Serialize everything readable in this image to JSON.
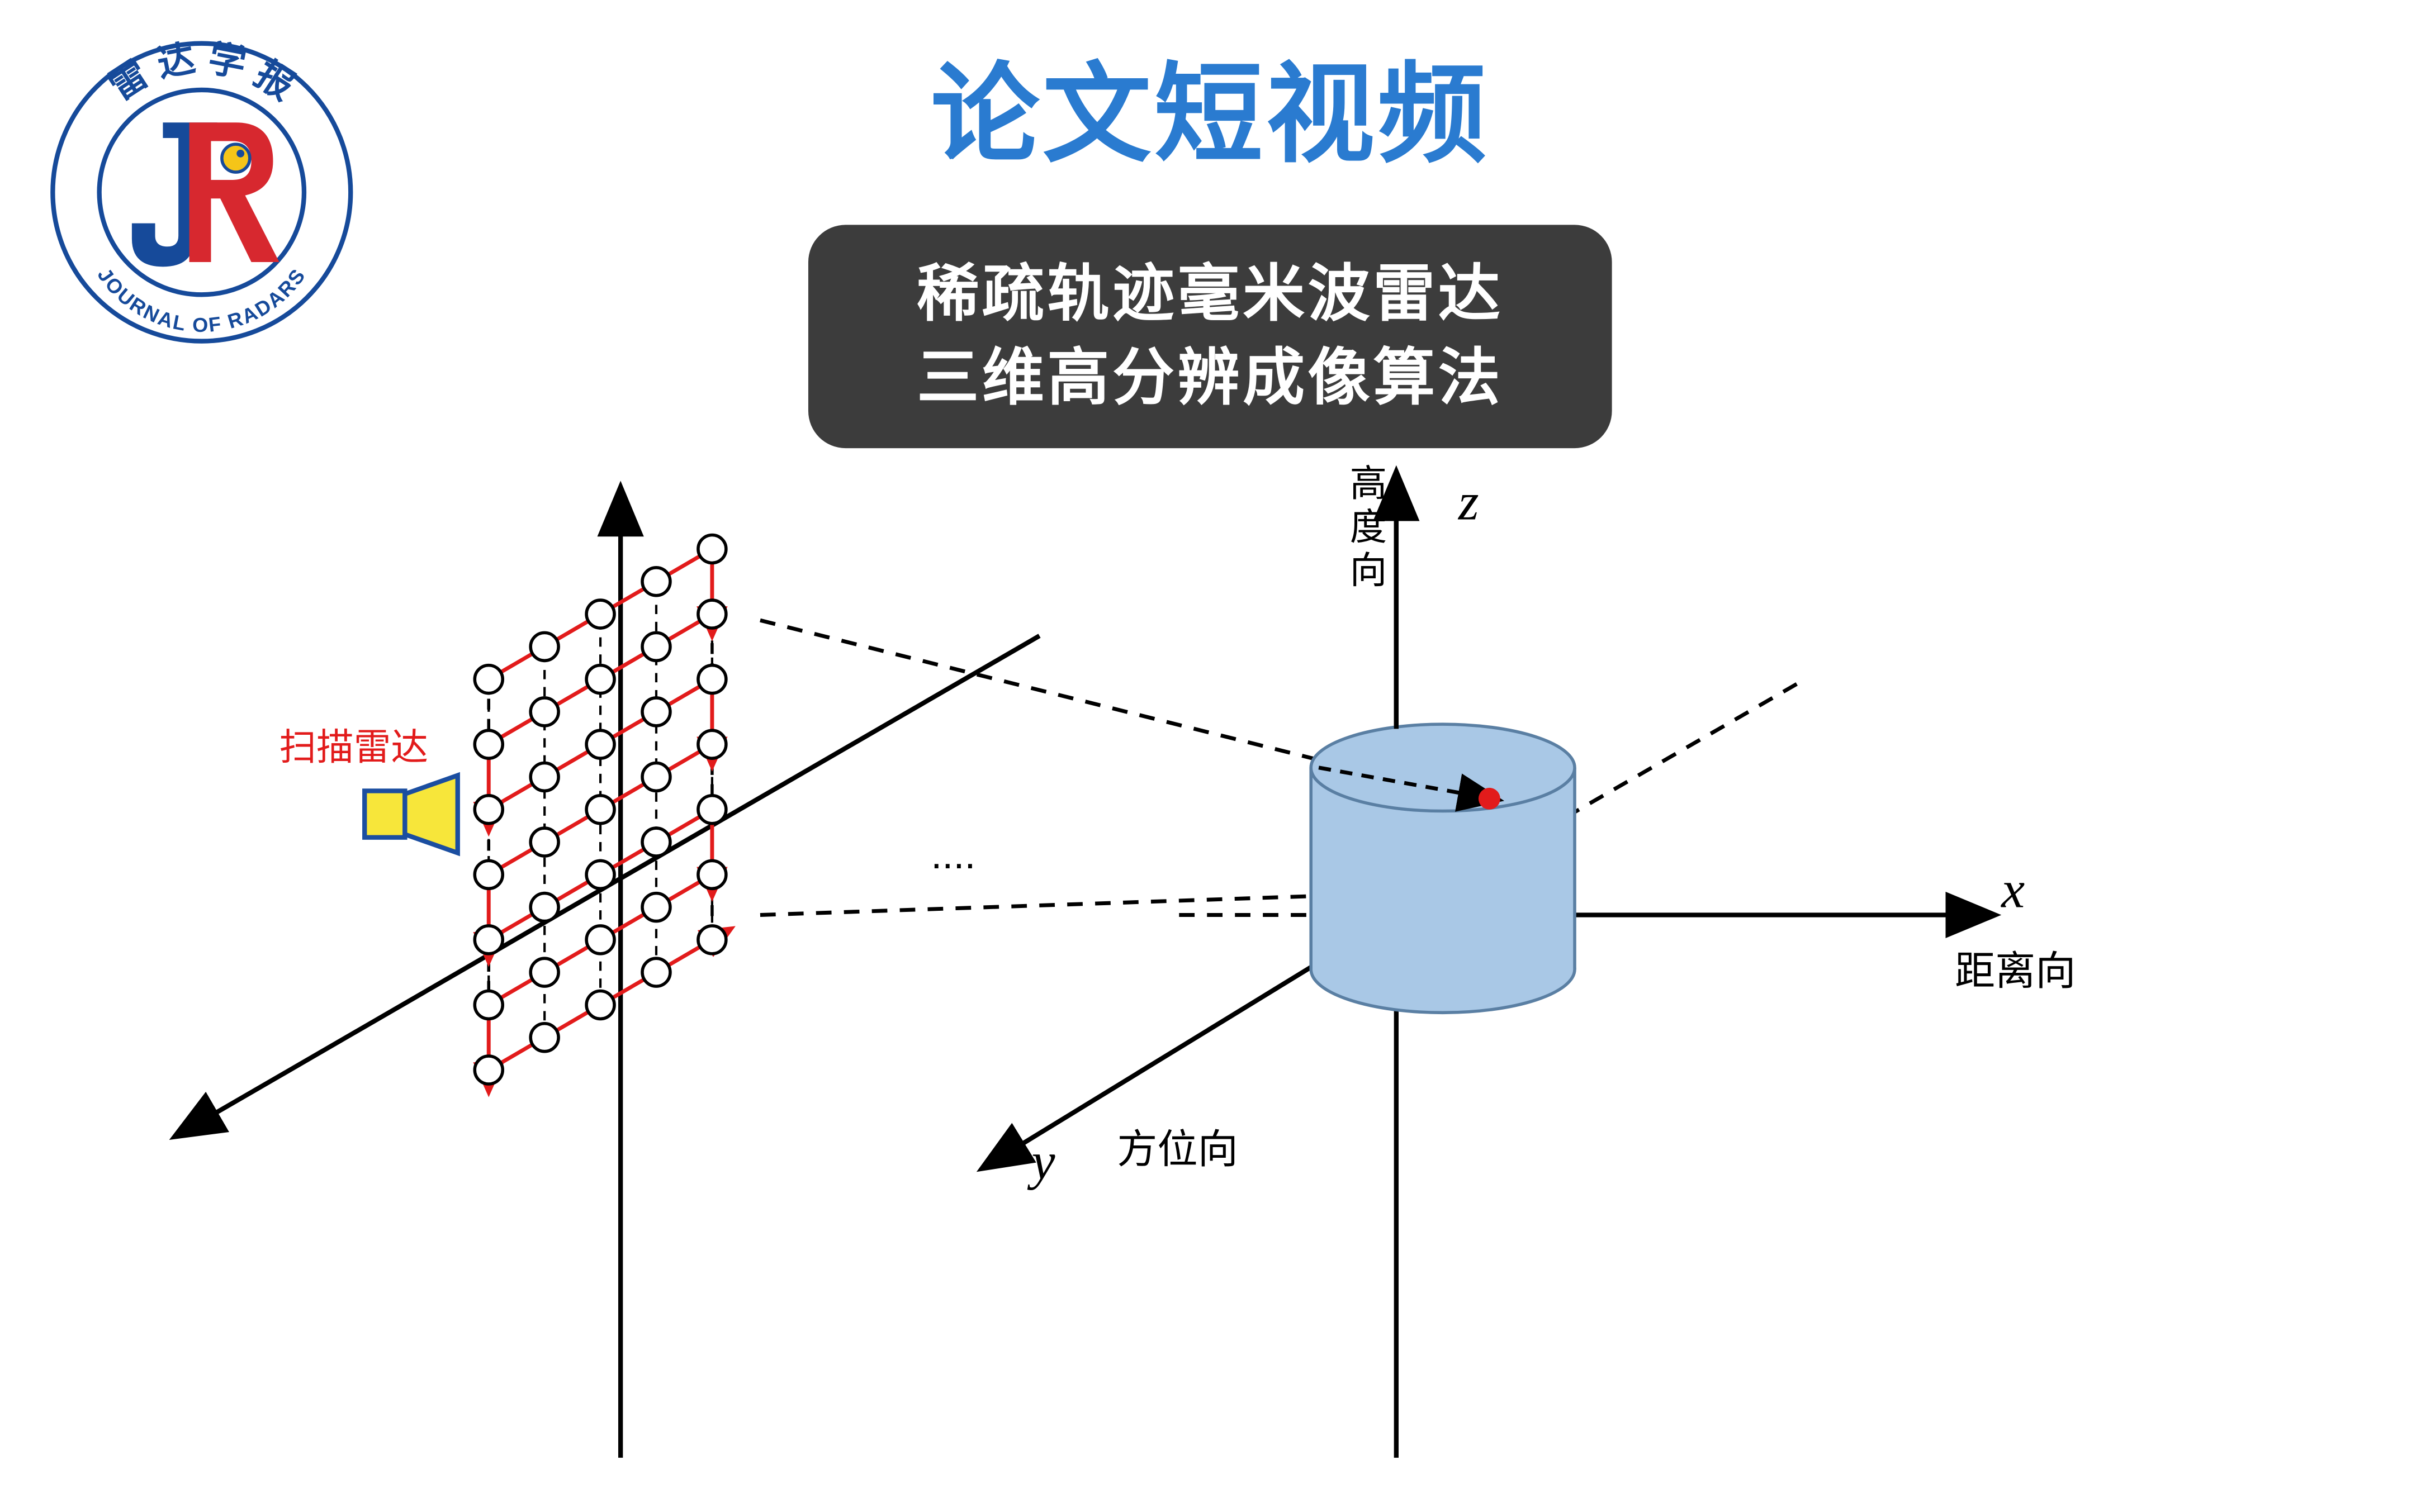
{
  "header": {
    "main_title": "论文短视频",
    "title_color": "#2a7bd0",
    "subtitle_line1": "稀疏轨迹毫米波雷达",
    "subtitle_line2": "三维高分辨成像算法",
    "subtitle_bg": "#3c3c3c",
    "subtitle_text_color": "#ffffff",
    "subtitle_fontsize": 40
  },
  "logo": {
    "outer_text_top": "雷 达 学 报",
    "outer_text_bottom": "JOURNAL OF RADARS",
    "ring_fill": "#ffffff",
    "ring_stroke": "#164a9a",
    "letter_blue": "#164a9a",
    "letter_red": "#d7282f",
    "accent_yellow": "#f5c518"
  },
  "diagram": {
    "type": "schematic",
    "background": "#ffffff",
    "axis_color": "#000000",
    "dash_color": "#000000",
    "scan_path_color": "#e21b1b",
    "radar_fill": "#f7e63a",
    "radar_stroke": "#1b4ea0",
    "cylinder_fill": "#a9c8e6",
    "cylinder_stroke": "#5a7fa3",
    "target_point_color": "#e21b1b",
    "labels": {
      "radar": "扫描雷达",
      "dots": "....",
      "x_axis_var": "x",
      "x_axis_cn": "距离向",
      "y_axis_var": "y",
      "y_axis_cn": "方位向",
      "z_axis_var": "z",
      "z_axis_cn_1": "高",
      "z_axis_cn_2": "度",
      "z_axis_cn_3": "向"
    },
    "label_fontsize_cn": 26,
    "label_fontsize_var": 34,
    "grid": {
      "rows": 7,
      "cols": 5,
      "circle_r": 9,
      "circle_stroke": "#000000",
      "circle_fill": "none",
      "dash_stroke": "#000000"
    }
  }
}
